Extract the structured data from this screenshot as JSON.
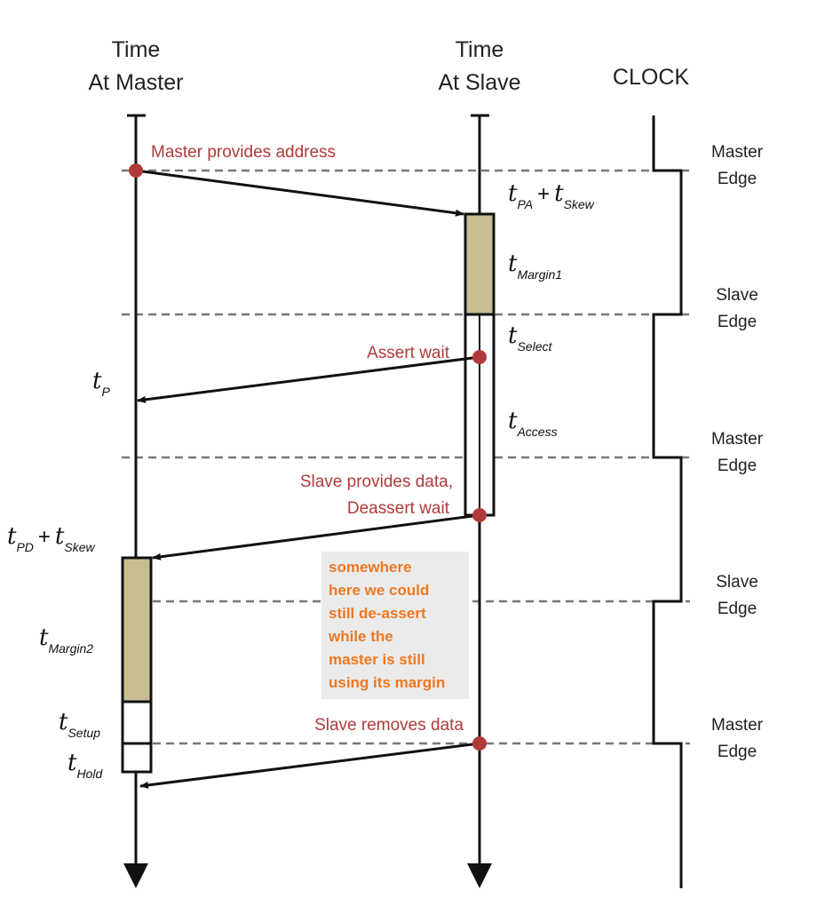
{
  "headers": {
    "master_line1": "Time",
    "master_line2": "At Master",
    "slave_line1": "Time",
    "slave_line2": "At Slave",
    "clock": "CLOCK"
  },
  "events": {
    "master_provides_address": "Master provides address",
    "assert_wait": "Assert wait",
    "slave_provides_data": "Slave provides data,",
    "deassert_wait": "Deassert wait",
    "slave_removes_data": "Slave removes data"
  },
  "timing_labels": {
    "tpa_skew": {
      "t1": "t",
      "s1": "PA",
      "plus": "+",
      "t2": "t",
      "s2": "Skew"
    },
    "tmargin1": {
      "t": "t",
      "sub": "Margin1"
    },
    "tselect": {
      "t": "t",
      "sub": "Select"
    },
    "tp": {
      "t": "t",
      "sub": "P"
    },
    "taccess": {
      "t": "t",
      "sub": "Access"
    },
    "tpd_skew": {
      "t1": "t",
      "s1": "PD",
      "plus": "+",
      "t2": "t",
      "s2": "Skew"
    },
    "tmargin2": {
      "t": "t",
      "sub": "Margin2"
    },
    "tsetup": {
      "t": "t",
      "sub": "Setup"
    },
    "thold": {
      "t": "t",
      "sub": "Hold"
    }
  },
  "clock_edges": [
    {
      "line1": "Master",
      "line2": "Edge"
    },
    {
      "line1": "Slave",
      "line2": "Edge"
    },
    {
      "line1": "Master",
      "line2": "Edge"
    },
    {
      "line1": "Slave",
      "line2": "Edge"
    },
    {
      "line1": "Master",
      "line2": "Edge"
    }
  ],
  "note": {
    "lines": [
      "somewhere",
      "here we could",
      "still de-assert",
      "while the",
      "master is still",
      "using its margin"
    ]
  },
  "colors": {
    "event_text": "#b03a3a",
    "event_dot": "#b03a3a",
    "margin_fill": "#c9bd94",
    "note_text": "#f07820",
    "note_bg": "#ebebeb",
    "dashed_line": "#777777"
  }
}
